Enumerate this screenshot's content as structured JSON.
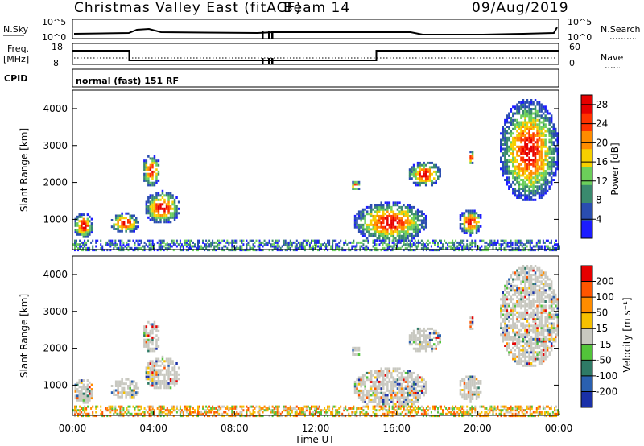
{
  "header": {
    "station": "Christmas Valley East (fitACF)",
    "beam": "Beam 14",
    "date": "09/Aug/2019"
  },
  "top_panel": {
    "nsky_label": "N.Sky",
    "nsky_ticks": [
      "10^5",
      "10^0"
    ],
    "nsearch_label": "N.Search",
    "nsearch_ticks": [
      "10^5",
      "10^0"
    ],
    "freq_label": "Freq.",
    "freq_unit": "[MHz]",
    "freq_ticks": [
      "18",
      "8"
    ],
    "nave_label": "Nave",
    "nave_ticks": [
      "60",
      "0"
    ],
    "cpid_label": "CPID",
    "cpid_value": "normal (fast) 151 RF"
  },
  "chart_data": [
    {
      "type": "heatmap",
      "name": "power",
      "ylabel": "Slant Range [km]",
      "yticks": [
        "1000",
        "2000",
        "3000",
        "4000"
      ],
      "ylim": [
        180,
        4500
      ],
      "colorbar_label": "Power [dB]",
      "colorbar_ticks": [
        "4",
        "8",
        "12",
        "16",
        "20",
        "24",
        "28"
      ],
      "colorbar_range": [
        0,
        30
      ],
      "colorbar_colors": [
        "#1c1cff",
        "#2a4db0",
        "#3a8a6e",
        "#6ccf5a",
        "#f6d000",
        "#ff8c00",
        "#ff3300",
        "#e60000"
      ]
    },
    {
      "type": "heatmap",
      "name": "velocity",
      "ylabel": "Slant Range [km]",
      "yticks": [
        "1000",
        "2000",
        "3000",
        "4000"
      ],
      "ylim": [
        180,
        4500
      ],
      "colorbar_label": "Velocity [m s⁻¹]",
      "colorbar_ticks": [
        "200",
        "100",
        "50",
        "15",
        "-15",
        "-50",
        "-100",
        "-200"
      ],
      "colorbar_colors": [
        "#1a30a8",
        "#2a60b0",
        "#2e7a66",
        "#52c43a",
        "#c8c8c0",
        "#f6c000",
        "#ff8c00",
        "#ff5500",
        "#e60000"
      ]
    }
  ],
  "xaxis": {
    "ticks": [
      "00:00",
      "04:00",
      "08:00",
      "12:00",
      "16:00",
      "20:00",
      "00:00"
    ],
    "label": "Time UT",
    "range_hours": [
      0,
      24
    ]
  },
  "frequency_series": {
    "segments": [
      {
        "from": 0,
        "to": 2.8,
        "level": "high"
      },
      {
        "from": 2.8,
        "to": 15.0,
        "level": "low"
      },
      {
        "from": 15.0,
        "to": 24,
        "level": "high"
      }
    ]
  },
  "echo_regions": [
    {
      "t0": 0.0,
      "t1": 1.0,
      "r0": 500,
      "r1": 1200
    },
    {
      "t0": 1.8,
      "t1": 3.3,
      "r0": 650,
      "r1": 1200
    },
    {
      "t0": 3.5,
      "t1": 5.3,
      "r0": 900,
      "r1": 1800
    },
    {
      "t0": 3.4,
      "t1": 4.3,
      "r0": 1900,
      "r1": 2800
    },
    {
      "t0": 13.7,
      "t1": 14.2,
      "r0": 1800,
      "r1": 2100
    },
    {
      "t0": 13.8,
      "t1": 17.5,
      "r0": 400,
      "r1": 1500
    },
    {
      "t0": 16.5,
      "t1": 18.2,
      "r0": 1900,
      "r1": 2600
    },
    {
      "t0": 19.0,
      "t1": 20.2,
      "r0": 600,
      "r1": 1300
    },
    {
      "t0": 19.5,
      "t1": 19.8,
      "r0": 2500,
      "r1": 2900
    },
    {
      "t0": 21.0,
      "t1": 24.0,
      "r0": 1500,
      "r1": 4300
    }
  ]
}
